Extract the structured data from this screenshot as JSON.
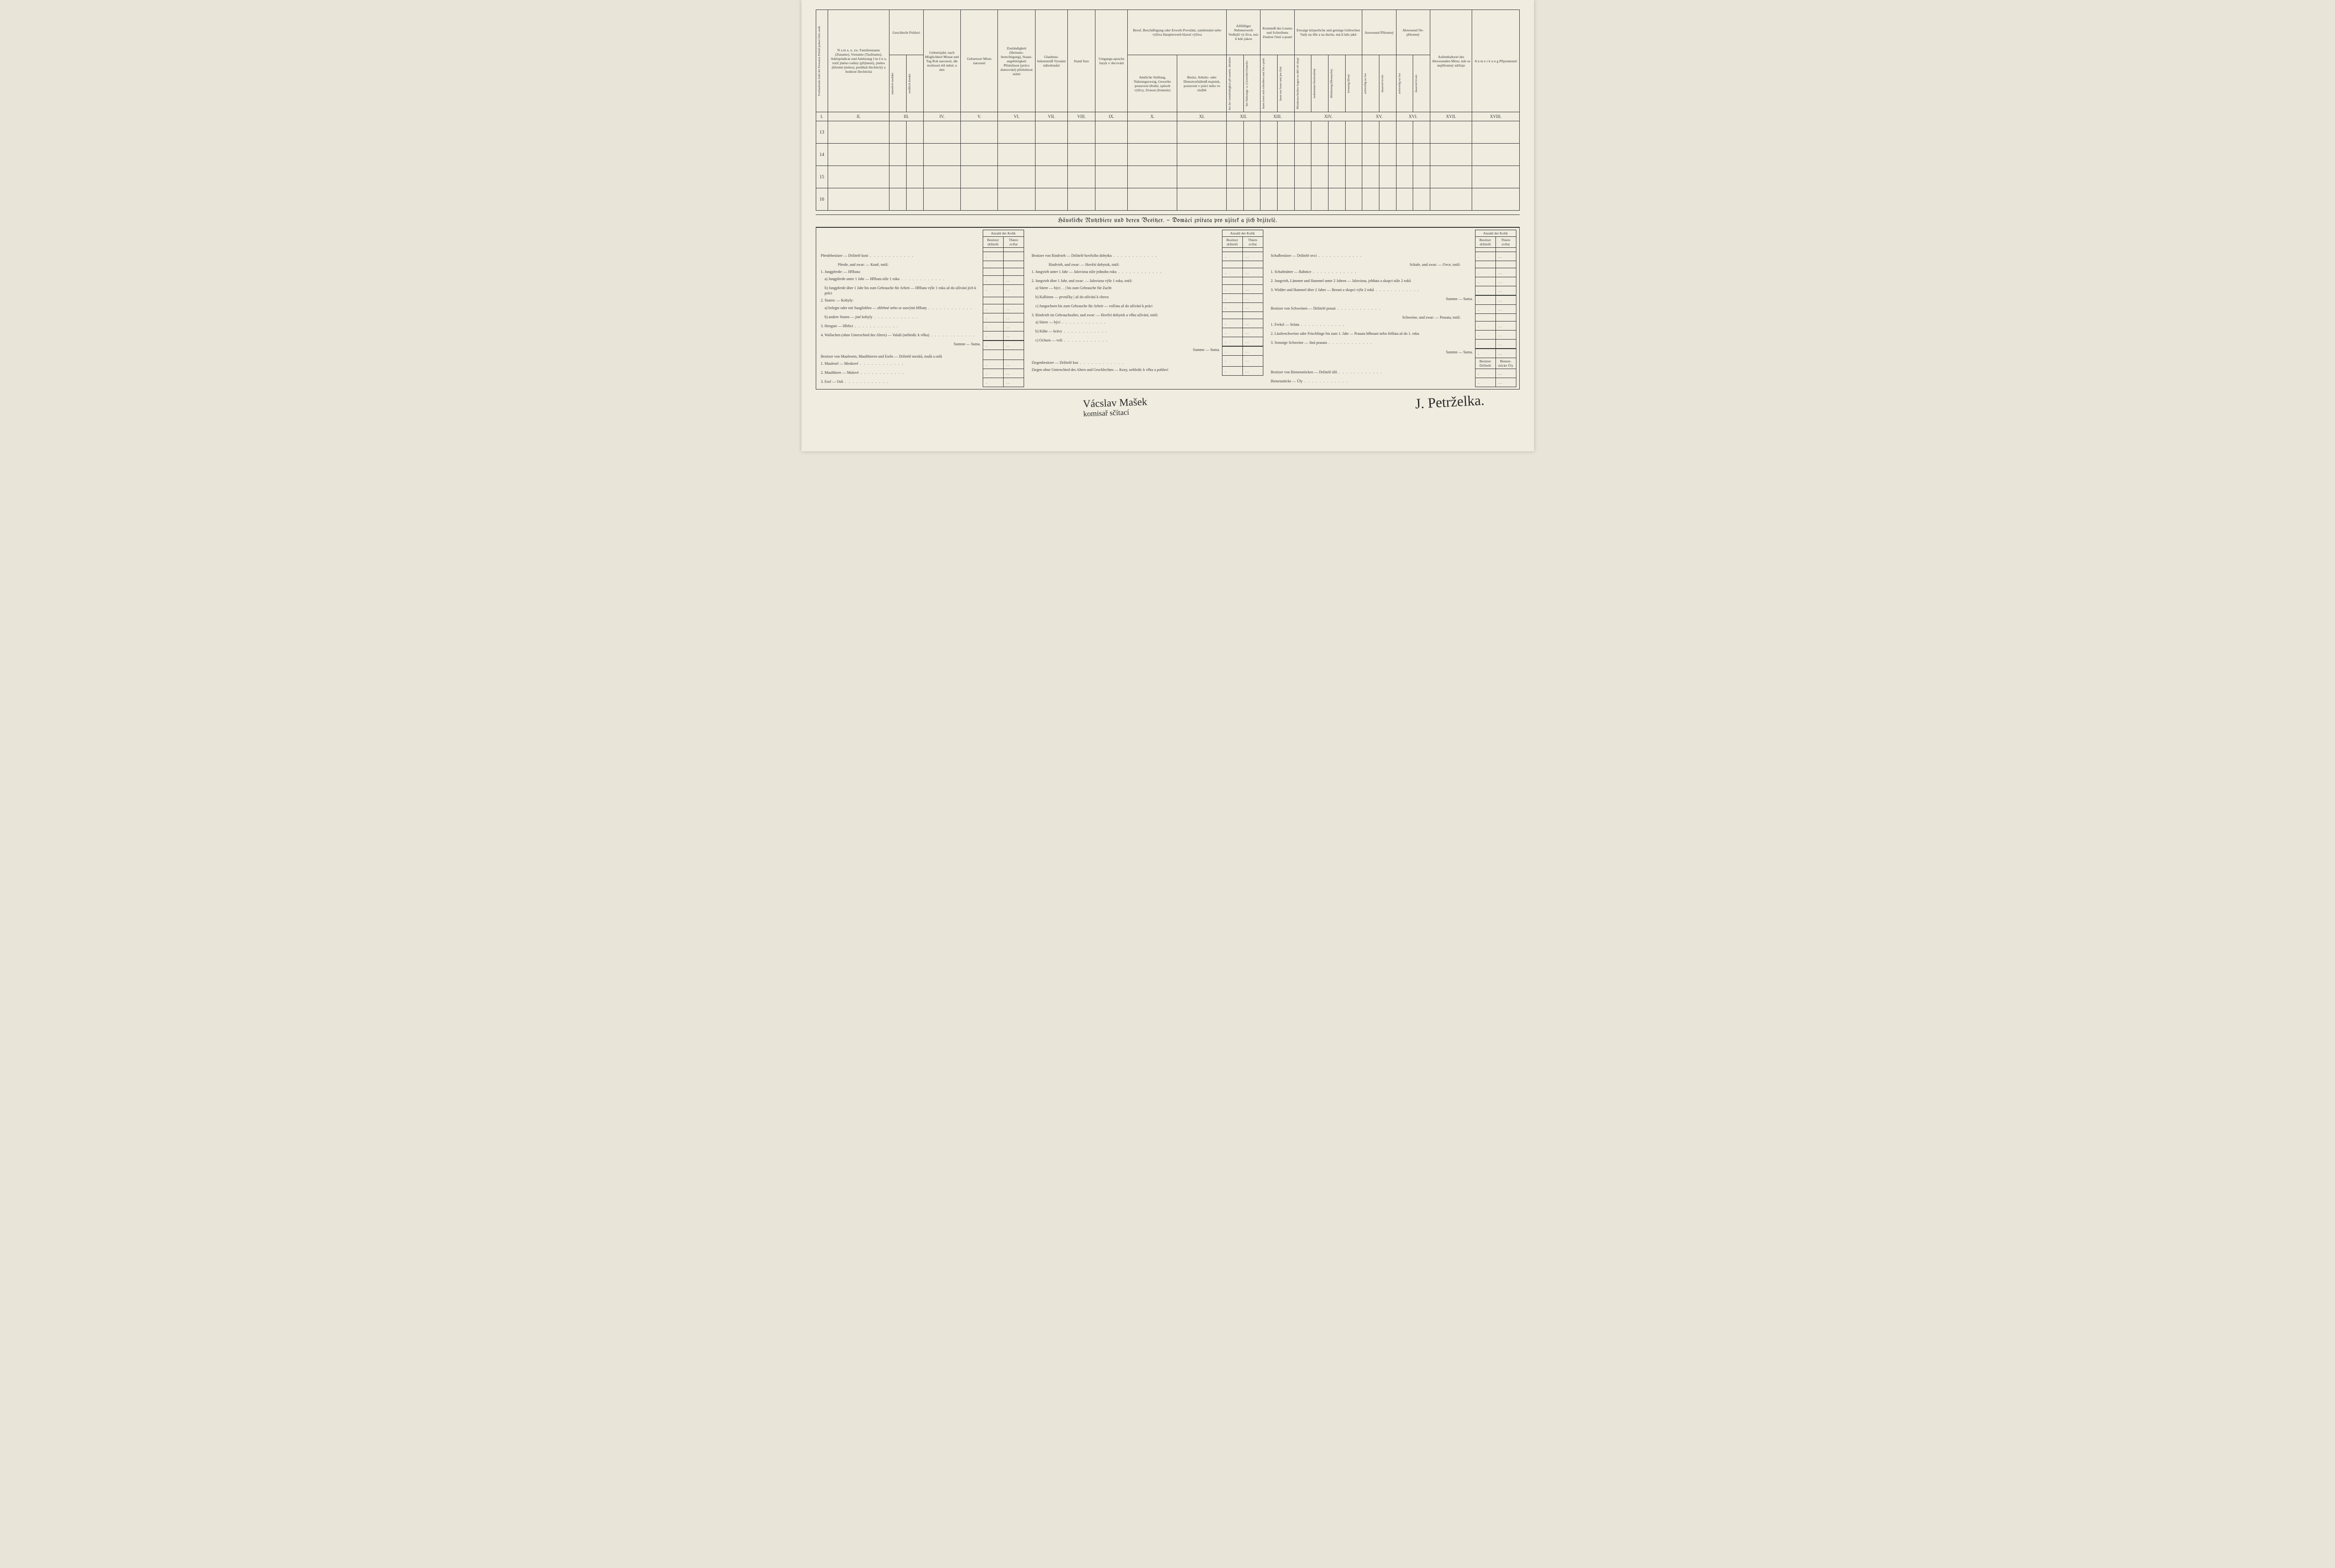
{
  "headers": {
    "col1": "Fortlaufende Zahl der Personen\nPořadí jednot číslo osob",
    "col2": "N a m e,\nu. zw. Familienname (Zuname), Vorname (Taufname), Adelsprädicat und Adelsrang\nJ m é n o,\ntotiž jméno rodiny (příjmení), jméno (křestné jméno), predikát šlechtický a hodnost šlechtická",
    "col3": "Geschlecht\nPohlaví",
    "col3a": "männlich\nmužské",
    "col3b": "weiblich\nženské",
    "col4": "Geburtsjahr, nach Möglichkeit Monat und Tag\nRok narození, dle možnosti též měsíc a den",
    "col5": "Geburtsort\nMísto narození",
    "col6": "Zuständigkeit (Heimats-berechtigung), Staats-angehörigkeit\nPříslušnost (právo domovské) příslušnost státní",
    "col7": "Glaubens-bekenntniß\nVyznání náboženské",
    "col8": "Stand\nStav",
    "col9": "Umgangs-sprache\nJazyk v obcování",
    "col10_title": "Beruf, Beschäftigung oder Erwerb\nPovolání, zaměstnání nebo výživa\nHaupterwerb\nhlavní výživa",
    "col10": "Amtliche Stellung, Nahrungszweig, Gewerbe\npostavení úřední, způsob výživy, živnost (řemeslo)",
    "col11": "Besitz, Arbeits- oder Dienstverhältniß\nmajetek, postavení v práci nebo ve službě",
    "col12_title": "Allfälliger Nebenerwerb\nVedlejší vý-živa, má-li kdo jakou",
    "col12a": "bei der Amtsthätigkeit\npři zaměst. úředním",
    "col12b": "bei Nahrungs- u. (Gewerbe) řemeslo",
    "col13_title": "Kenntniß des Lesens und Schreibens\nZnalost čtení a psaní",
    "col13a": "kann lesen und schreiben\numí číst a psáti",
    "col13b": "kann nur lesen\numí jen čísti",
    "col14_title": "Etwaige körperliche und geistige Gebrechen\nVady na těle a na duchu, má-li kdo jaké",
    "col14a": "Blindennu beiden Augen\nna obě oči slepý",
    "col14b": "taubstumm\nhluchoněmý",
    "col14c": "Blödsinnig\nblbomyslný",
    "col14d": "Irrsinnig\nšílený",
    "col15_title": "Anwesend\nPřítomný",
    "col15a": "zeitweilig\nna čas",
    "col15b": "dauernd\ntrvale",
    "col16_title": "Abwesend\nNe-přítomný",
    "col16a": "zeitweilig\nna čas",
    "col16b": "dauernd\ntrvale",
    "col17": "Aufenthaltsort des Abwesenden\nMísto, kde se nepřítomný zdržuje",
    "col18": "A n m e r k u n g\nPřipomenutí"
  },
  "roman": [
    "I.",
    "II.",
    "III.",
    "IV.",
    "V.",
    "VI.",
    "VII.",
    "VIII.",
    "IX.",
    "X.",
    "XI.",
    "XII.",
    "XIII.",
    "XIV.",
    "XV.",
    "XVI.",
    "XVII.",
    "XVIII."
  ],
  "rows": [
    "13",
    "14",
    "15",
    "16"
  ],
  "section_title": "Häusliche Nutzthiere und deren Besitzer. — Domácí zvířata pro užitek a jich držitelé.",
  "count_head": {
    "title": "Anzahl der\nKolik",
    "owners": "Besitzer\ndržitelů",
    "animals": "Thiere\nzvířat"
  },
  "livestock": {
    "horses_title": "Pferdebesitzer — Držitelé koní",
    "horses_sub": "Pferde, und zwar: — Koně, totiž:",
    "horses_1": "1. Jungpferde: — Hříbata:",
    "horses_1a": "a) Jungpferde unter 1 Jahr — Hříbata níže 1 roku",
    "horses_1b": "b) Jungpferde über 1 Jahr bis zum Gebrauche für Arbeit — Hříbata výše 1 roku až do užívání jich k práci",
    "horses_2": "2. Stuten: — Kobyly:",
    "horses_2a": "a) belegte oder mit Saugfohlen — zhřebné nebo se ssavými hříbaty",
    "horses_2b": "b) andere Stuten — jiné kobyly",
    "horses_3": "3. Hengste — Hřebci",
    "horses_4": "4. Wallachen (ohne Unterschied des Alters) — Valaši (nehledíc k věku)",
    "summe": "Summe — Suma.",
    "mules_title": "Besitzer von Maulesetn, Maulthieren und Eseln — Držitelé mezků, mulů a oslů",
    "mules_1": "1. Maulesel — Mezkové",
    "mules_2": "2. Maulthiere — Mulové",
    "mules_3": "3. Esel — Osli",
    "cattle_title": "Besitzer von Rindvieh — Držitelé hovězího dobytka",
    "cattle_sub": "Rindvieh, und zwar: — Hovězí dobytok, totiž:",
    "cattle_1": "1. Jungvieh unter 1 Jahr — Jalovizna níže jednoho roku",
    "cattle_2": "2. Jungvieh über 1 Jahr, und zwar: — Jalovizna výše 1 roku, totiž:",
    "cattle_2a": "a) Stiere — býci . . | bis zum Gebrauche für Zucht",
    "cattle_2b": "b) Kalbinen — prvničky | až do užívání k chovu",
    "cattle_2c": "c) Jungochsen bis zum Gebrauche für Arbeit — volčata až do užívání k práci",
    "cattle_3": "3. Rindvieh im Gebrauchsalter, und zwar: — Hovězí dobytek u věku užívání, totiž:",
    "cattle_3a": "a) Stiere — býci",
    "cattle_3b": "b) Kühe — krávy",
    "cattle_3c": "c) Ochsen — voli",
    "goats_title": "Ziegenbesitzer — Držitelé koz",
    "goats_1": "Ziegen ohne Unterschied des Alters und Geschlechtes — Kozy, nehledíc k věku a pohlaví",
    "sheep_title": "Schafbesitzer — Držitelé ovcí",
    "sheep_sub": "Schafe, und zwar: — Ovce, totiž:",
    "sheep_1": "1. Schafmütter — Bahnice",
    "sheep_2": "2. Jungvieh, Lämmer und Hammel unter 2 Jahren — Jalovizna, jehňata a skopci níže 2 roků",
    "sheep_3": "3. Widder und Hammel über 2 Jahre — Berani a skopci výše 2 roků",
    "pigs_title": "Besitzer von Schweinen — Držitelé prasat",
    "pigs_sub": "Schweine, und zwar: — Prasata, totiž:",
    "pigs_1": "1. Ferkel — Selata",
    "pigs_2": "2. Läuferschweine oder Frischlinge bis zum 1. Jahr — Prasata běhouni nebo frišlata až do 1. roku",
    "pigs_3": "3. Sonstige Schweine — Jiná prasata",
    "bees_title": "Besitzer von Bienenstöcken — Držitelé úlů",
    "bees_1": "Bienenstöcke — Úly",
    "bees_head_owners": "Besitzer\nDržitelé",
    "bees_head_stocks": "Bienen-stöcke\nÚly"
  },
  "signatures": {
    "left1": "Vácslav Mašek",
    "left2": "komisař sčítací",
    "right": "J. Petrželka."
  }
}
